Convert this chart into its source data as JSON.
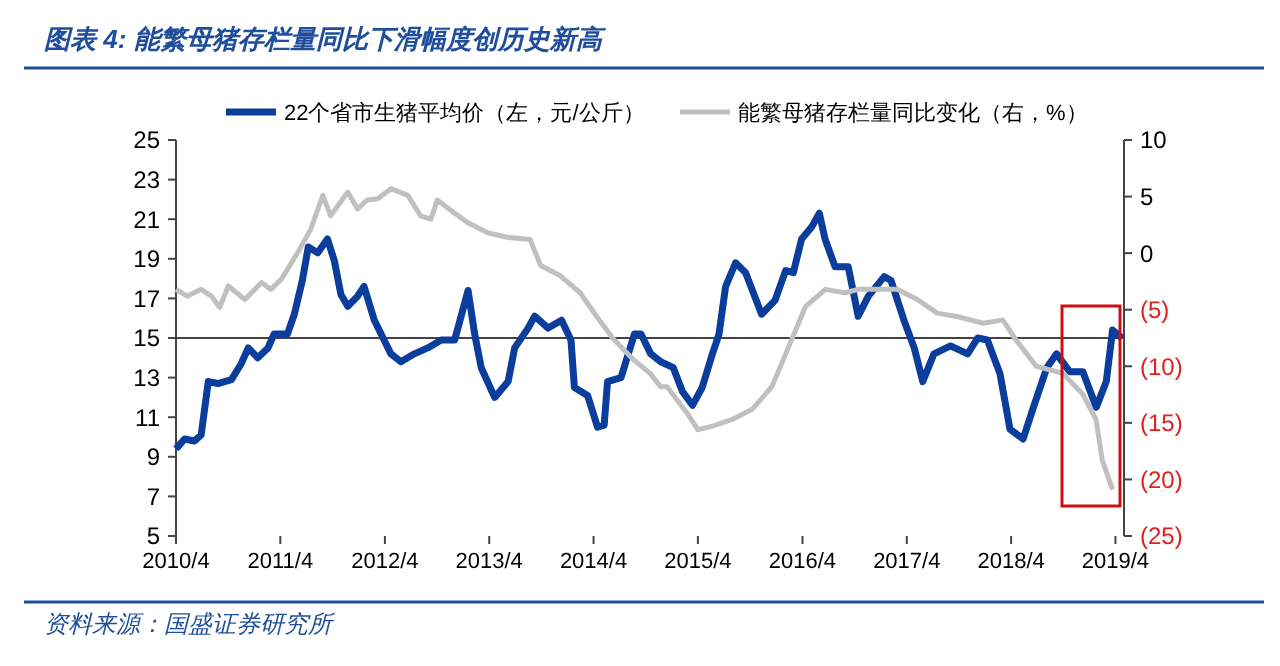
{
  "chart_data": {
    "type": "line",
    "title": "图表 4:  能繁母猪存栏量同比下滑幅度创历史新高",
    "annotations": [
      "资料来源：国盛证券研究所"
    ],
    "legend": "top",
    "grid": false,
    "ref_lines": [
      {
        "axis": "y",
        "value": 15,
        "color": "#444444"
      }
    ],
    "xlim": [
      "2010-04-01",
      "2019-05-01"
    ],
    "xticks": [
      {
        "value": "2010-04-01",
        "label": "2010/4"
      },
      {
        "value": "2011-04-01",
        "label": "2011/4"
      },
      {
        "value": "2012-04-01",
        "label": "2012/4"
      },
      {
        "value": "2013-04-01",
        "label": "2013/4"
      },
      {
        "value": "2014-04-01",
        "label": "2014/4"
      },
      {
        "value": "2015-04-01",
        "label": "2015/4"
      },
      {
        "value": "2016-04-01",
        "label": "2016/4"
      },
      {
        "value": "2017-04-01",
        "label": "2017/4"
      },
      {
        "value": "2018-04-01",
        "label": "2018/4"
      },
      {
        "value": "2019-04-01",
        "label": "2019/4"
      }
    ],
    "ylim": [
      5,
      25
    ],
    "yticks": [
      5,
      7,
      9,
      11,
      13,
      15,
      17,
      19,
      21,
      23,
      25
    ],
    "y2lim": [
      -25,
      10
    ],
    "y2ticks": [
      {
        "value": -25,
        "label": "(25)"
      },
      {
        "value": -20,
        "label": "(20)"
      },
      {
        "value": -15,
        "label": "(15)"
      },
      {
        "value": -10,
        "label": "(10)"
      },
      {
        "value": -5,
        "label": "(5)"
      },
      0,
      5,
      10
    ],
    "series": [
      {
        "name": "22个省市生猪平均价（左，元/公斤）",
        "color": "#0a3d9c",
        "x": [
          "2010-04-01",
          "2010-05-01",
          "2010-06-05",
          "2010-06-28",
          "2010-07-23",
          "2010-08-26",
          "2010-10-12",
          "2010-11-15",
          "2010-12-10",
          "2011-01-12",
          "2011-02-17",
          "2011-03-10",
          "2011-04-26",
          "2011-05-20",
          "2011-06-17",
          "2011-07-08",
          "2011-08-10",
          "2011-09-13",
          "2011-10-07",
          "2011-10-30",
          "2011-11-23",
          "2011-12-27",
          "2012-01-19",
          "2012-02-24",
          "2012-03-29",
          "2012-04-22",
          "2012-05-27",
          "2012-07-13",
          "2012-08-29",
          "2012-10-15",
          "2012-12-01",
          "2013-01-17",
          "2013-02-09",
          "2013-03-04",
          "2013-04-20",
          "2013-06-06",
          "2013-06-29",
          "2013-08-15",
          "2013-09-07",
          "2013-10-24",
          "2013-12-10",
          "2014-01-12",
          "2014-01-24",
          "2014-03-11",
          "2014-04-15",
          "2014-05-08",
          "2014-05-20",
          "2014-07-06",
          "2014-08-22",
          "2014-09-14",
          "2014-10-18",
          "2014-11-22",
          "2015-01-05",
          "2015-02-06",
          "2015-03-13",
          "2015-04-16",
          "2015-05-22",
          "2015-06-14",
          "2015-07-07",
          "2015-08-11",
          "2015-09-15",
          "2015-11-10",
          "2015-12-27",
          "2016-02-02",
          "2016-02-29",
          "2016-03-29",
          "2016-05-03",
          "2016-05-30",
          "2016-06-19",
          "2016-07-24",
          "2016-09-08",
          "2016-10-13",
          "2016-11-17",
          "2017-01-12",
          "2017-02-05",
          "2017-03-22",
          "2017-04-27",
          "2017-05-27",
          "2017-07-05",
          "2017-09-01",
          "2017-10-31",
          "2017-12-05",
          "2018-01-08",
          "2018-02-21",
          "2018-03-28",
          "2018-05-13",
          "2018-06-18",
          "2018-08-04",
          "2018-09-07",
          "2018-10-23",
          "2018-12-08",
          "2019-01-24",
          "2019-02-28",
          "2019-03-22",
          "2019-04-24"
        ],
        "values": [
          9.4,
          9.9,
          9.8,
          10.1,
          12.8,
          12.7,
          12.9,
          13.7,
          14.5,
          14.0,
          14.5,
          15.2,
          15.2,
          16.2,
          17.9,
          19.6,
          19.3,
          20.0,
          18.9,
          17.2,
          16.6,
          17.1,
          17.6,
          15.9,
          14.9,
          14.2,
          13.8,
          14.2,
          14.5,
          14.9,
          14.9,
          17.4,
          15.2,
          13.5,
          12.0,
          12.8,
          14.5,
          15.5,
          16.1,
          15.5,
          15.9,
          14.9,
          12.5,
          12.1,
          10.5,
          10.6,
          12.8,
          13.0,
          15.2,
          15.2,
          14.2,
          13.8,
          13.5,
          12.3,
          11.6,
          12.5,
          14.2,
          15.2,
          17.6,
          18.8,
          18.3,
          16.2,
          16.9,
          18.4,
          18.3,
          20.0,
          20.6,
          21.3,
          20.0,
          18.6,
          18.6,
          16.1,
          17.1,
          18.1,
          17.9,
          15.9,
          14.5,
          12.8,
          14.2,
          14.6,
          14.2,
          15.0,
          14.9,
          13.2,
          10.4,
          9.9,
          11.5,
          13.5,
          14.2,
          13.3,
          13.3,
          11.5,
          12.8,
          15.4,
          15.0
        ]
      },
      {
        "name": "能繁母猪存栏量同比变化（右，%）",
        "color": "#c0c0c0",
        "axis": "y2",
        "x": [
          "2010-04-01",
          "2010-05-10",
          "2010-06-28",
          "2010-08-03",
          "2010-09-01",
          "2010-10-01",
          "2010-11-28",
          "2011-01-25",
          "2011-02-27",
          "2011-04-05",
          "2011-06-02",
          "2011-07-16",
          "2011-08-28",
          "2011-09-24",
          "2011-11-23",
          "2011-12-27",
          "2012-01-30",
          "2012-03-07",
          "2012-04-22",
          "2012-06-20",
          "2012-08-04",
          "2012-09-09",
          "2012-10-01",
          "2012-11-28",
          "2013-01-15",
          "2013-03-26",
          "2013-06-03",
          "2013-08-22",
          "2013-09-28",
          "2013-12-06",
          "2014-02-13",
          "2014-04-12",
          "2014-06-10",
          "2014-08-18",
          "2014-10-15",
          "2014-11-21",
          "2014-12-14",
          "2015-02-21",
          "2015-04-01",
          "2015-05-22",
          "2015-07-30",
          "2015-10-08",
          "2015-12-16",
          "2016-02-24",
          "2016-04-12",
          "2016-06-20",
          "2016-08-28",
          "2016-10-13",
          "2016-12-20",
          "2017-02-27",
          "2017-05-08",
          "2017-07-16",
          "2017-09-24",
          "2017-12-24",
          "2018-03-03",
          "2018-04-16",
          "2018-06-28",
          "2018-09-27",
          "2018-12-06",
          "2019-01-23",
          "2019-02-14",
          "2019-03-22"
        ],
        "values": [
          -3.2,
          -3.8,
          -3.2,
          -3.8,
          -4.8,
          -2.9,
          -4.1,
          -2.6,
          -3.2,
          -2.3,
          0.1,
          2.1,
          5.1,
          3.3,
          5.4,
          3.9,
          4.7,
          4.8,
          5.7,
          5.1,
          3.3,
          3.0,
          4.7,
          3.6,
          2.7,
          1.8,
          1.4,
          1.2,
          -1.1,
          -2.0,
          -3.5,
          -5.6,
          -7.6,
          -9.4,
          -10.6,
          -11.8,
          -11.8,
          -14.1,
          -15.6,
          -15.3,
          -14.7,
          -13.8,
          -11.8,
          -7.6,
          -4.7,
          -3.2,
          -3.5,
          -3.2,
          -3.2,
          -3.2,
          -4.1,
          -5.3,
          -5.6,
          -6.2,
          -5.9,
          -7.6,
          -10.0,
          -10.6,
          -12.4,
          -14.7,
          -18.3,
          -20.9
        ]
      }
    ]
  }
}
